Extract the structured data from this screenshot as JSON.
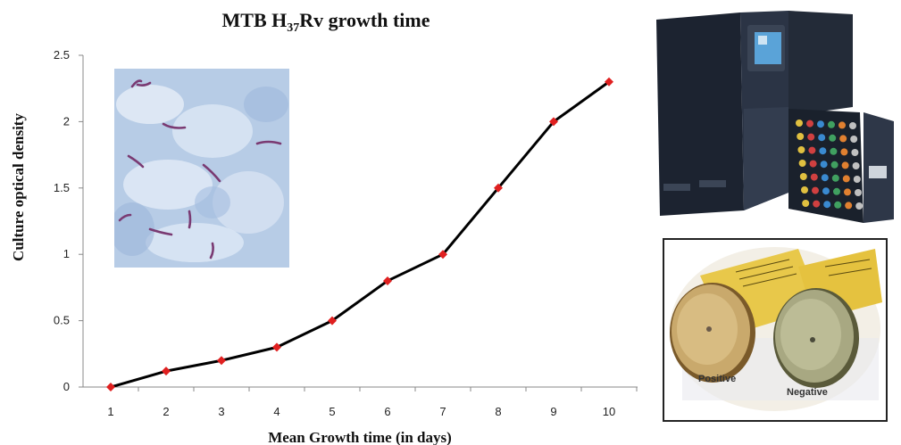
{
  "chart_data": {
    "type": "line",
    "title_parts": {
      "prefix": "MTB H",
      "subscript": "37",
      "suffix": "Rv growth time"
    },
    "xlabel": "Mean Growth time (in days)",
    "ylabel": "Culture optical density",
    "x": [
      1,
      2,
      3,
      4,
      5,
      6,
      7,
      8,
      9,
      10
    ],
    "values": [
      0,
      0.12,
      0.2,
      0.3,
      0.5,
      0.8,
      1.0,
      1.5,
      2.0,
      2.3
    ],
    "x_tick_labels": [
      "1",
      "2",
      "3",
      "4",
      "5",
      "6",
      "7",
      "8",
      "9",
      "10"
    ],
    "y_tick_labels": [
      "0",
      "0.5",
      "1",
      "1.5",
      "2",
      "2.5"
    ],
    "ylim": [
      0,
      2.5
    ],
    "grid": false,
    "line_color": "#000000",
    "marker_color": "#e02020",
    "marker": "diamond"
  },
  "figures": {
    "bottle_labels": {
      "positive": "Positive",
      "negative": "Negative"
    }
  }
}
